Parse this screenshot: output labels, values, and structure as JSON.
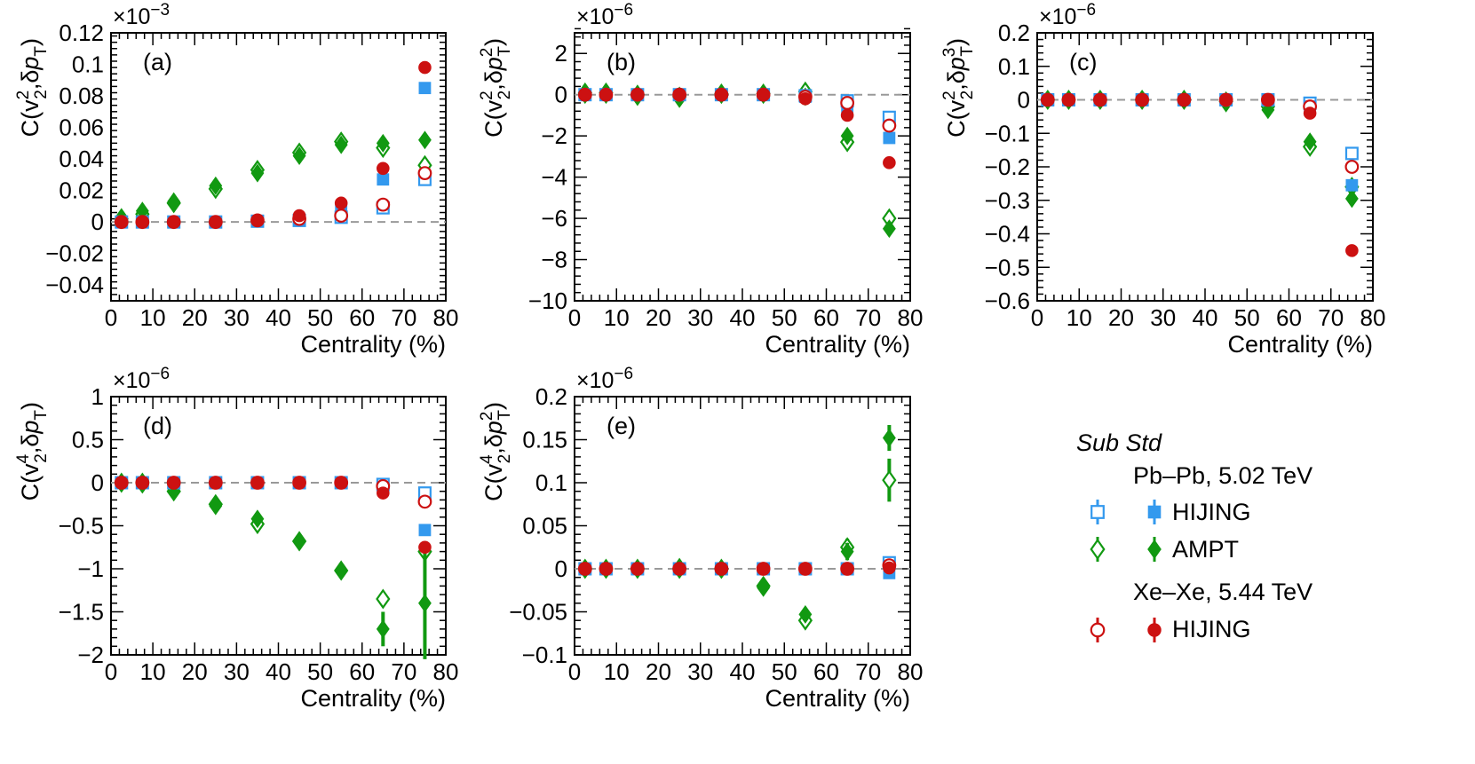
{
  "legend": {
    "header": "Sub Std",
    "group_pb": "Pb–Pb, 5.02 TeV",
    "group_xe": "Xe–Xe, 5.44 TeV",
    "hijing": "HIJING",
    "ampt": "AMPT",
    "hijing_xe": "HIJING"
  },
  "colors": {
    "hijing_pb": "#3399ee",
    "ampt_pb": "#119911",
    "hijing_xe": "#cc1111",
    "ref_line": "#999999"
  },
  "chart_data": [
    {
      "type": "scatter",
      "id": "a",
      "label": "(a)",
      "ylabel_base": "C(v",
      "ylabel_sup": "2",
      "ylabel_sub": "2",
      "ylabel_mid": ",δp",
      "ylabel_pt_sup": "",
      "ylabel_pt_sub": "T",
      "ylabel_end": ")",
      "multiplier_base": "×10",
      "multiplier_exp": "−3",
      "xlabel": "Centrality (%)",
      "xlim": [
        0,
        80
      ],
      "ylim": [
        -0.05,
        0.12
      ],
      "xticks": [
        0,
        10,
        20,
        30,
        40,
        50,
        60,
        70,
        80
      ],
      "yticks": [
        -0.04,
        -0.02,
        0,
        0.02,
        0.04,
        0.06,
        0.08,
        0.1,
        0.12
      ],
      "ytick_labels": [
        "−0.04",
        "−0.02",
        "0",
        "0.02",
        "0.04",
        "0.06",
        "0.08",
        "0.1",
        "0.12"
      ],
      "x": [
        2.5,
        7.5,
        15,
        25,
        35,
        45,
        55,
        65,
        75
      ],
      "series": [
        {
          "name": "HIJING Pb-Pb sub",
          "marker": "square",
          "fill": "open",
          "color": "#3399ee",
          "values": [
            0,
            0,
            0,
            0,
            0.0005,
            0.001,
            0.003,
            0.009,
            0.027
          ]
        },
        {
          "name": "HIJING Pb-Pb std",
          "marker": "square",
          "fill": "filled",
          "color": "#3399ee",
          "values": [
            0,
            0,
            0,
            0,
            0.0005,
            0.0015,
            0.008,
            0.027,
            0.085
          ]
        },
        {
          "name": "AMPT Pb-Pb sub",
          "marker": "diamond",
          "fill": "open",
          "color": "#119911",
          "values": [
            0.002,
            0.005,
            0.012,
            0.021,
            0.033,
            0.044,
            0.051,
            0.047,
            0.036
          ]
        },
        {
          "name": "AMPT Pb-Pb std",
          "marker": "diamond",
          "fill": "filled",
          "color": "#119911",
          "values": [
            0.003,
            0.007,
            0.013,
            0.023,
            0.031,
            0.042,
            0.049,
            0.05,
            0.052
          ]
        },
        {
          "name": "HIJING Xe-Xe sub",
          "marker": "circle",
          "fill": "open",
          "color": "#cc1111",
          "values": [
            0,
            0,
            0,
            0,
            0.001,
            0.002,
            0.004,
            0.011,
            0.031
          ]
        },
        {
          "name": "HIJING Xe-Xe std",
          "marker": "circle",
          "fill": "filled",
          "color": "#cc1111",
          "values": [
            0,
            0,
            0,
            0,
            0.001,
            0.004,
            0.012,
            0.034,
            0.098
          ]
        }
      ]
    },
    {
      "type": "scatter",
      "id": "b",
      "label": "(b)",
      "ylabel_base": "C(v",
      "ylabel_sup": "2",
      "ylabel_sub": "2",
      "ylabel_mid": ",δp",
      "ylabel_pt_sup": "2",
      "ylabel_pt_sub": "T",
      "ylabel_end": ")",
      "multiplier_base": "×10",
      "multiplier_exp": "−6",
      "xlabel": "Centrality (%)",
      "xlim": [
        0,
        80
      ],
      "ylim": [
        -10,
        3
      ],
      "xticks": [
        0,
        10,
        20,
        30,
        40,
        50,
        60,
        70,
        80
      ],
      "yticks": [
        -10,
        -8,
        -6,
        -4,
        -2,
        0,
        2
      ],
      "ytick_labels": [
        "−10",
        "−8",
        "−6",
        "−4",
        "−2",
        "0",
        "2"
      ],
      "x": [
        2.5,
        7.5,
        15,
        25,
        35,
        45,
        55,
        65,
        75
      ],
      "series": [
        {
          "name": "HIJING Pb-Pb sub",
          "marker": "square",
          "fill": "open",
          "color": "#3399ee",
          "values": [
            0,
            0,
            0,
            0,
            0,
            0,
            -0.05,
            -0.3,
            -1.1
          ]
        },
        {
          "name": "HIJING Pb-Pb std",
          "marker": "square",
          "fill": "filled",
          "color": "#3399ee",
          "values": [
            0,
            0,
            0,
            0,
            0,
            0,
            -0.1,
            -0.6,
            -2.1
          ]
        },
        {
          "name": "AMPT Pb-Pb sub",
          "marker": "diamond",
          "fill": "open",
          "color": "#119911",
          "values": [
            0.1,
            0.1,
            0,
            -0.1,
            0.05,
            0.05,
            0.15,
            -2.3,
            -6.0
          ]
        },
        {
          "name": "AMPT Pb-Pb std",
          "marker": "diamond",
          "fill": "filled",
          "color": "#119911",
          "values": [
            0,
            0,
            -0.1,
            -0.2,
            0,
            0,
            -0.1,
            -2.0,
            -6.5
          ]
        },
        {
          "name": "HIJING Xe-Xe sub",
          "marker": "circle",
          "fill": "open",
          "color": "#cc1111",
          "values": [
            0,
            0,
            0,
            0,
            0,
            0,
            -0.1,
            -0.4,
            -1.5
          ]
        },
        {
          "name": "HIJING Xe-Xe std",
          "marker": "circle",
          "fill": "filled",
          "color": "#cc1111",
          "values": [
            0,
            0,
            0,
            0,
            0,
            0,
            -0.2,
            -1.0,
            -3.3
          ]
        }
      ]
    },
    {
      "type": "scatter",
      "id": "c",
      "label": "(c)",
      "ylabel_base": "C(v",
      "ylabel_sup": "2",
      "ylabel_sub": "2",
      "ylabel_mid": ",δp",
      "ylabel_pt_sup": "3",
      "ylabel_pt_sub": "T",
      "ylabel_end": ")",
      "multiplier_base": "×10",
      "multiplier_exp": "−6",
      "xlabel": "Centrality (%)",
      "xlim": [
        0,
        80
      ],
      "ylim": [
        -0.6,
        0.2
      ],
      "xticks": [
        0,
        10,
        20,
        30,
        40,
        50,
        60,
        70,
        80
      ],
      "yticks": [
        -0.6,
        -0.5,
        -0.4,
        -0.3,
        -0.2,
        -0.1,
        0,
        0.1,
        0.2
      ],
      "ytick_labels": [
        "−0.6",
        "−0.5",
        "−0.4",
        "−0.3",
        "−0.2",
        "−0.1",
        "0",
        "0.1",
        "0.2"
      ],
      "x": [
        2.5,
        7.5,
        15,
        25,
        35,
        45,
        55,
        65,
        75
      ],
      "series": [
        {
          "name": "HIJING Pb-Pb sub",
          "marker": "square",
          "fill": "open",
          "color": "#3399ee",
          "values": [
            0,
            0,
            0,
            0,
            0,
            0,
            0,
            -0.01,
            -0.16
          ]
        },
        {
          "name": "HIJING Pb-Pb std",
          "marker": "square",
          "fill": "filled",
          "color": "#3399ee",
          "values": [
            0,
            0,
            0,
            0,
            0,
            0,
            0,
            -0.02,
            -0.255
          ]
        },
        {
          "name": "AMPT Pb-Pb sub",
          "marker": "diamond",
          "fill": "open",
          "color": "#119911",
          "values": [
            0,
            0,
            0,
            0,
            0,
            -0.005,
            -0.02,
            -0.14,
            -0.26
          ]
        },
        {
          "name": "AMPT Pb-Pb std",
          "marker": "diamond",
          "fill": "filled",
          "color": "#119911",
          "values": [
            0,
            0,
            0,
            0,
            0,
            -0.01,
            -0.03,
            -0.125,
            -0.295
          ]
        },
        {
          "name": "HIJING Xe-Xe sub",
          "marker": "circle",
          "fill": "open",
          "color": "#cc1111",
          "values": [
            0,
            0,
            0,
            0,
            0,
            0,
            0,
            -0.02,
            -0.2
          ]
        },
        {
          "name": "HIJING Xe-Xe std",
          "marker": "circle",
          "fill": "filled",
          "color": "#cc1111",
          "values": [
            0,
            0,
            0,
            0,
            0,
            0,
            0,
            -0.04,
            -0.45
          ]
        }
      ]
    },
    {
      "type": "scatter",
      "id": "d",
      "label": "(d)",
      "ylabel_base": "C(v",
      "ylabel_sup": "4",
      "ylabel_sub": "2",
      "ylabel_mid": ",δp",
      "ylabel_pt_sup": "",
      "ylabel_pt_sub": "T",
      "ylabel_end": ")",
      "multiplier_base": "×10",
      "multiplier_exp": "−6",
      "xlabel": "Centrality (%)",
      "xlim": [
        0,
        80
      ],
      "ylim": [
        -2,
        1
      ],
      "xticks": [
        0,
        10,
        20,
        30,
        40,
        50,
        60,
        70,
        80
      ],
      "yticks": [
        -2,
        -1.5,
        -1,
        -0.5,
        0,
        0.5,
        1
      ],
      "ytick_labels": [
        "−2",
        "−1.5",
        "−1",
        "−0.5",
        "0",
        "0.5",
        "1"
      ],
      "x": [
        2.5,
        7.5,
        15,
        25,
        35,
        45,
        55,
        65,
        75
      ],
      "series": [
        {
          "name": "HIJING Pb-Pb sub",
          "marker": "square",
          "fill": "open",
          "color": "#3399ee",
          "values": [
            0,
            0,
            0,
            0,
            0,
            0,
            0,
            -0.02,
            -0.12
          ]
        },
        {
          "name": "HIJING Pb-Pb std",
          "marker": "square",
          "fill": "filled",
          "color": "#3399ee",
          "values": [
            0,
            0,
            0,
            0,
            0,
            0,
            0,
            -0.05,
            -0.55
          ]
        },
        {
          "name": "AMPT Pb-Pb sub",
          "marker": "diamond",
          "fill": "open",
          "color": "#119911",
          "values": [
            0,
            0,
            -0.1,
            -0.25,
            -0.48,
            -0.68,
            -1.02,
            -1.35,
            -0.8
          ]
        },
        {
          "name": "AMPT Pb-Pb std",
          "marker": "diamond",
          "fill": "filled",
          "color": "#119911",
          "values": [
            0,
            -0.02,
            -0.1,
            -0.27,
            -0.42,
            -0.67,
            -1.03,
            -1.7,
            -1.4
          ],
          "errors": [
            0,
            0,
            0,
            0,
            0,
            0,
            0,
            0.2,
            0.65
          ]
        },
        {
          "name": "HIJING Xe-Xe sub",
          "marker": "circle",
          "fill": "open",
          "color": "#cc1111",
          "values": [
            0,
            0,
            0,
            0,
            0,
            0,
            0,
            -0.04,
            -0.22
          ]
        },
        {
          "name": "HIJING Xe-Xe std",
          "marker": "circle",
          "fill": "filled",
          "color": "#cc1111",
          "values": [
            0,
            0,
            0,
            0,
            0,
            0,
            0,
            -0.12,
            -0.75
          ]
        }
      ]
    },
    {
      "type": "scatter",
      "id": "e",
      "label": "(e)",
      "ylabel_base": "C(v",
      "ylabel_sup": "4",
      "ylabel_sub": "2",
      "ylabel_mid": ",δp",
      "ylabel_pt_sup": "2",
      "ylabel_pt_sub": "T",
      "ylabel_end": ")",
      "multiplier_base": "×10",
      "multiplier_exp": "−6",
      "xlabel": "Centrality (%)",
      "xlim": [
        0,
        80
      ],
      "ylim": [
        -0.1,
        0.2
      ],
      "xticks": [
        0,
        10,
        20,
        30,
        40,
        50,
        60,
        70,
        80
      ],
      "yticks": [
        -0.1,
        -0.05,
        0,
        0.05,
        0.1,
        0.15,
        0.2
      ],
      "ytick_labels": [
        "−0.1",
        "−0.05",
        "0",
        "0.05",
        "0.1",
        "0.15",
        "0.2"
      ],
      "x": [
        2.5,
        7.5,
        15,
        25,
        35,
        45,
        55,
        65,
        75
      ],
      "series": [
        {
          "name": "HIJING Pb-Pb sub",
          "marker": "square",
          "fill": "open",
          "color": "#3399ee",
          "values": [
            0,
            0,
            0,
            0,
            0,
            0,
            0,
            0,
            0.007
          ]
        },
        {
          "name": "HIJING Pb-Pb std",
          "marker": "square",
          "fill": "filled",
          "color": "#3399ee",
          "values": [
            0,
            0,
            0,
            0,
            0,
            0,
            0,
            0,
            -0.005
          ]
        },
        {
          "name": "AMPT Pb-Pb sub",
          "marker": "diamond",
          "fill": "open",
          "color": "#119911",
          "values": [
            0,
            0,
            0,
            0,
            0,
            -0.02,
            -0.06,
            0.025,
            0.103
          ],
          "errors": [
            0,
            0,
            0,
            0,
            0,
            0,
            0,
            0.01,
            0.025
          ]
        },
        {
          "name": "AMPT Pb-Pb std",
          "marker": "diamond",
          "fill": "filled",
          "color": "#119911",
          "values": [
            0,
            0,
            0,
            0.002,
            0,
            -0.022,
            -0.053,
            0.02,
            0.152
          ],
          "errors": [
            0,
            0,
            0,
            0,
            0,
            0,
            0,
            0.01,
            0.015
          ]
        },
        {
          "name": "HIJING Xe-Xe sub",
          "marker": "circle",
          "fill": "open",
          "color": "#cc1111",
          "values": [
            0,
            0,
            0,
            0,
            0,
            0,
            0,
            0,
            0.004
          ]
        },
        {
          "name": "HIJING Xe-Xe std",
          "marker": "circle",
          "fill": "filled",
          "color": "#cc1111",
          "values": [
            0,
            0,
            0,
            0,
            0,
            0,
            0,
            0,
            0.001
          ]
        }
      ]
    }
  ]
}
